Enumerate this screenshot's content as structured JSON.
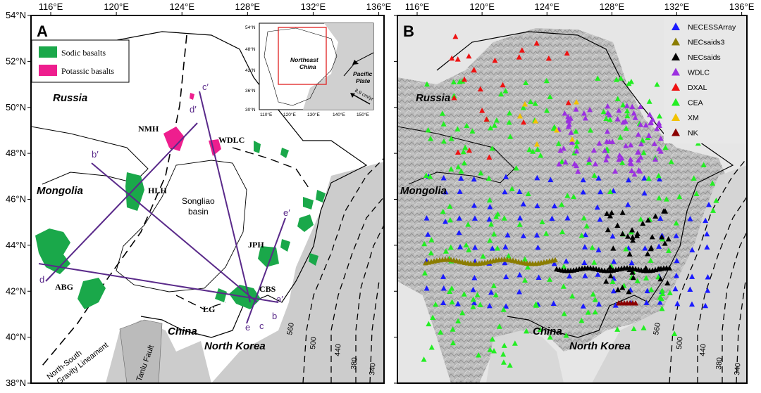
{
  "panelA": {
    "label": "A",
    "legend": [
      {
        "label": "Sodic basalts",
        "color": "#1aa84a"
      },
      {
        "label": "Potassic basalts",
        "color": "#ee1e8e"
      }
    ],
    "countries": {
      "russia": "Russia",
      "mongolia": "Mongolia",
      "china": "China",
      "north_korea": "North Korea"
    },
    "volcanoes": {
      "nmh": "NMH",
      "wdlc": "WDLC",
      "hlh": "HLH",
      "jph": "JPH",
      "abg": "ABG",
      "cbs": "CBS",
      "lg": "LG"
    },
    "basin": {
      "line1": "Songliao",
      "line2": "basin"
    },
    "lineament": {
      "line1": "North-South",
      "line2": "Gravity Lineament"
    },
    "fault": "Tanlu Fault",
    "profiles": {
      "b": "b",
      "b_prime": "b′",
      "c": "c",
      "c_prime": "c′",
      "d": "d",
      "d_prime": "d′",
      "e": "e",
      "e_prime": "e′",
      "a_prime": "a′"
    },
    "contours": [
      "560",
      "500",
      "440",
      "380",
      "340"
    ],
    "inset": {
      "title_line1": "Northeast",
      "title_line2": "China",
      "plate_line1": "Pacific",
      "plate_line2": "Plate",
      "rate": "8.9 cm/yr",
      "lat_ticks": [
        "54°N",
        "48°N",
        "42°N",
        "36°N",
        "30°N"
      ],
      "lon_ticks": [
        "110°E",
        "120°E",
        "130°E",
        "140°E",
        "150°E"
      ]
    }
  },
  "panelB": {
    "label": "B",
    "countries": {
      "russia": "Russia",
      "mongolia": "Mongolia",
      "china": "China",
      "north_korea": "North Korea"
    },
    "contours": [
      "560",
      "500",
      "440",
      "380",
      "340"
    ],
    "legend": [
      {
        "label": "NECESSArray",
        "color": "#1a1aff"
      },
      {
        "label": "NECsaids3",
        "color": "#8b7d00"
      },
      {
        "label": "NECsaids",
        "color": "#000000"
      },
      {
        "label": "WDLC",
        "color": "#9b30e0"
      },
      {
        "label": "DXAL",
        "color": "#ee1111"
      },
      {
        "label": "CEA",
        "color": "#22ee22"
      },
      {
        "label": "XM",
        "color": "#f2c200"
      },
      {
        "label": "NK",
        "color": "#8b0000"
      }
    ]
  },
  "axes": {
    "lon_ticks": [
      "116°E",
      "120°E",
      "124°E",
      "128°E",
      "132°E",
      "136°E"
    ],
    "lat_ticks": [
      "54°N",
      "52°N",
      "50°N",
      "48°N",
      "46°N",
      "44°N",
      "42°N",
      "40°N",
      "38°N"
    ]
  }
}
